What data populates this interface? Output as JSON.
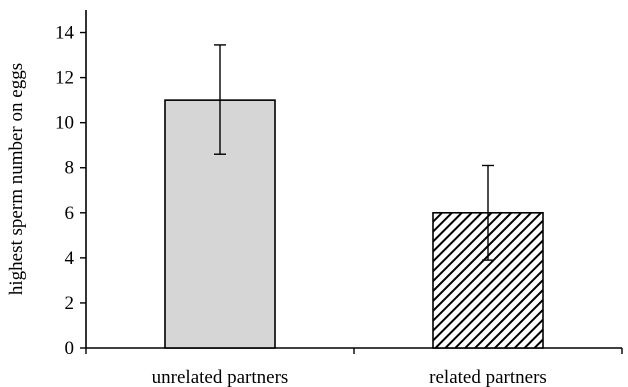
{
  "chart_data": {
    "type": "bar",
    "title": "",
    "xlabel": "",
    "ylabel": "highest sperm number on eggs",
    "ylim": [
      0,
      15
    ],
    "yticks": [
      0,
      2,
      4,
      6,
      8,
      10,
      12,
      14
    ],
    "categories": [
      "unrelated partners",
      "related partners"
    ],
    "values": [
      11.0,
      6.0
    ],
    "error_low": [
      8.6,
      3.9
    ],
    "error_high": [
      13.45,
      8.1
    ],
    "bar_fills": [
      "solid",
      "hatched"
    ],
    "colors": {
      "bar_solid": "#d6d6d6",
      "bar_stroke": "#000000",
      "hatch_line": "#000000",
      "axis": "#000000"
    },
    "grid": false,
    "legend": "none"
  }
}
